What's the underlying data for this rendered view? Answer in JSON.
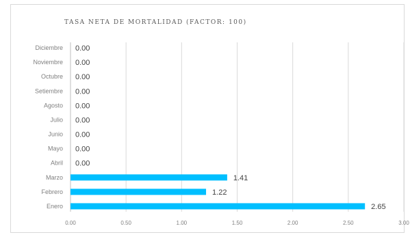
{
  "chart_data": {
    "type": "bar",
    "orientation": "horizontal",
    "title": "TASA NETA DE MORTALIDAD (FACTOR: 100)",
    "categories": [
      "Enero",
      "Febrero",
      "Marzo",
      "Abril",
      "Mayo",
      "Junio",
      "Julio",
      "Agosto",
      "Setiembre",
      "Octubre",
      "Noviembre",
      "Diciembre"
    ],
    "values": [
      2.65,
      1.22,
      1.41,
      0.0,
      0.0,
      0.0,
      0.0,
      0.0,
      0.0,
      0.0,
      0.0,
      0.0
    ],
    "value_labels": [
      "2.65",
      "1.22",
      "1.41",
      "0.00",
      "0.00",
      "0.00",
      "0.00",
      "0.00",
      "0.00",
      "0.00",
      "0.00",
      "0.00"
    ],
    "xlim": [
      0,
      3
    ],
    "x_ticks": [
      "0.00",
      "0.50",
      "1.00",
      "1.50",
      "2.00",
      "2.50",
      "3.00"
    ],
    "grid": true,
    "legend": "none",
    "bar_color": "#00bfff"
  }
}
